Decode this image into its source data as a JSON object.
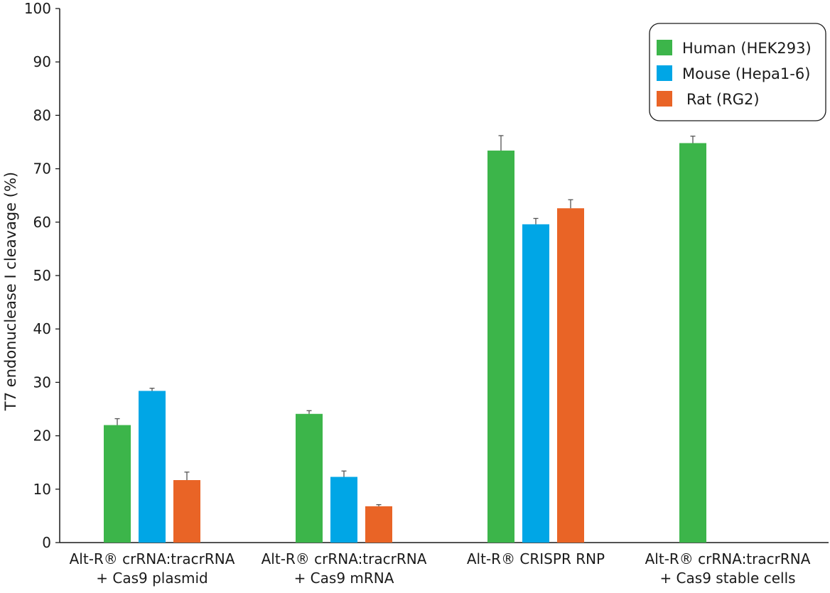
{
  "chart_data": {
    "type": "bar",
    "title": "",
    "xlabel": "",
    "ylabel": "T7 endonuclease I cleavage (%)",
    "ylim": [
      0,
      100
    ],
    "yticks": [
      0,
      10,
      20,
      30,
      40,
      50,
      60,
      70,
      80,
      90,
      100
    ],
    "grid": false,
    "legend_position": "top-right",
    "categories": [
      [
        "Alt-R® crRNA:tracrRNA",
        "+ Cas9 plasmid"
      ],
      [
        "Alt-R® crRNA:tracrRNA",
        "+ Cas9 mRNA"
      ],
      [
        "Alt-R® CRISPR RNP"
      ],
      [
        "Alt-R® crRNA:tracrRNA",
        "+ Cas9 stable cells"
      ]
    ],
    "series": [
      {
        "name": "Human (HEK293)",
        "color": "#3cb54a",
        "values": [
          22.0,
          24.1,
          73.4,
          74.8
        ],
        "errors": [
          1.2,
          0.6,
          2.8,
          1.3
        ]
      },
      {
        "name": "Mouse (Hepa1-6)",
        "color": "#00a6e6",
        "values": [
          28.4,
          12.3,
          59.6,
          null
        ],
        "errors": [
          0.5,
          1.1,
          1.1,
          null
        ]
      },
      {
        "name": "Rat (RG2)",
        "color": "#e96426",
        "values": [
          11.7,
          6.8,
          62.6,
          null
        ],
        "errors": [
          1.5,
          0.3,
          1.6,
          null
        ]
      }
    ]
  }
}
